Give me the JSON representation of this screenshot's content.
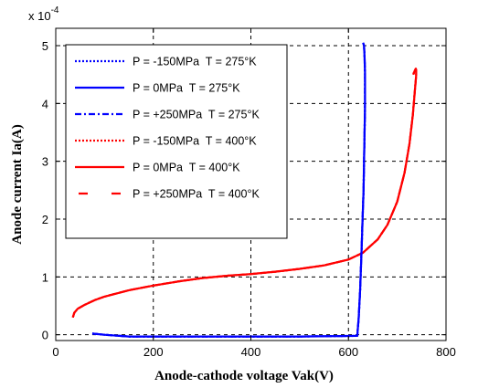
{
  "chart_data": {
    "type": "line",
    "xlabel": "Anode-cathode voltage Vak(V)",
    "ylabel": "Anode current Ia(A)",
    "y_multiplier_label": {
      "base": "x 10",
      "exponent": "-4"
    },
    "xlim": [
      0,
      800
    ],
    "ylim": [
      -0.1,
      5.3
    ],
    "x_ticks": [
      0,
      200,
      400,
      600,
      800
    ],
    "y_ticks": [
      0,
      1,
      2,
      3,
      4,
      5
    ],
    "grid": true,
    "grid_style": "dashed",
    "legend_position": "top-left",
    "colors": {
      "blue": "#0000ff",
      "red": "#ff0000",
      "grid": "#000000"
    },
    "series": [
      {
        "name": "P = -150MPa  T = 275°K",
        "color": "#0000ff",
        "dash": "dotted",
        "x": [
          75,
          100,
          150,
          300,
          500,
          618,
          621,
          624,
          627,
          629,
          631,
          632,
          633,
          634,
          634,
          633,
          632,
          630
        ],
        "y": [
          0.02,
          0.0,
          -0.03,
          -0.03,
          -0.03,
          -0.02,
          0.3,
          0.8,
          1.5,
          2.0,
          2.5,
          3.0,
          3.5,
          4.0,
          4.5,
          4.8,
          5.0,
          5.05
        ]
      },
      {
        "name": "P = 0MPa  T = 275°K",
        "color": "#0000ff",
        "dash": "solid",
        "x": [
          75,
          100,
          150,
          300,
          500,
          618,
          621,
          624,
          627,
          629,
          631,
          632,
          633,
          634,
          634,
          633,
          632,
          630
        ],
        "y": [
          0.02,
          0.0,
          -0.03,
          -0.03,
          -0.03,
          -0.02,
          0.3,
          0.8,
          1.5,
          2.0,
          2.5,
          3.0,
          3.5,
          4.0,
          4.5,
          4.8,
          5.0,
          5.05
        ]
      },
      {
        "name": "P = +250MPa  T = 275°K",
        "color": "#0000ff",
        "dash": "dashdot",
        "x": [
          75,
          100,
          150,
          300,
          500,
          618,
          621,
          624,
          627,
          629,
          631,
          632,
          633,
          634,
          634,
          633,
          632,
          630
        ],
        "y": [
          0.02,
          0.0,
          -0.03,
          -0.03,
          -0.03,
          -0.02,
          0.3,
          0.8,
          1.5,
          2.0,
          2.5,
          3.0,
          3.5,
          4.0,
          4.5,
          4.8,
          5.0,
          5.05
        ]
      },
      {
        "name": "P = -150MPa  T = 400°K",
        "color": "#ff0000",
        "dash": "dotted",
        "x": [
          35,
          38,
          45,
          60,
          80,
          100,
          150,
          200,
          250,
          300,
          350,
          400,
          450,
          500,
          550,
          600,
          630,
          660,
          680,
          700,
          715,
          725,
          732,
          736,
          738,
          739,
          739,
          738,
          735,
          733
        ],
        "y": [
          0.3,
          0.38,
          0.45,
          0.52,
          0.6,
          0.66,
          0.77,
          0.85,
          0.92,
          0.98,
          1.02,
          1.05,
          1.09,
          1.14,
          1.2,
          1.3,
          1.42,
          1.65,
          1.9,
          2.3,
          2.8,
          3.3,
          3.8,
          4.2,
          4.4,
          4.5,
          4.58,
          4.6,
          4.55,
          4.5
        ]
      },
      {
        "name": "P = 0MPa  T = 400°K",
        "color": "#ff0000",
        "dash": "solid",
        "x": [
          35,
          38,
          45,
          60,
          80,
          100,
          150,
          200,
          250,
          300,
          350,
          400,
          450,
          500,
          550,
          600,
          630,
          660,
          680,
          700,
          715,
          725,
          732,
          736,
          738,
          739,
          739,
          738,
          735,
          733
        ],
        "y": [
          0.3,
          0.38,
          0.45,
          0.52,
          0.6,
          0.66,
          0.77,
          0.85,
          0.92,
          0.98,
          1.02,
          1.05,
          1.09,
          1.14,
          1.2,
          1.3,
          1.42,
          1.65,
          1.9,
          2.3,
          2.8,
          3.3,
          3.8,
          4.2,
          4.4,
          4.5,
          4.58,
          4.6,
          4.55,
          4.5
        ]
      },
      {
        "name": "P = +250MPa  T = 400°K",
        "color": "#ff0000",
        "dash": "dashed",
        "x": [
          35,
          38,
          45,
          60,
          80,
          100,
          150,
          200,
          250,
          300,
          350,
          400,
          450,
          500,
          550,
          600,
          630,
          660,
          680,
          700,
          715,
          725,
          732,
          736,
          738,
          739,
          739,
          738,
          735,
          733
        ],
        "y": [
          0.3,
          0.38,
          0.45,
          0.52,
          0.6,
          0.66,
          0.77,
          0.85,
          0.92,
          0.98,
          1.02,
          1.05,
          1.09,
          1.14,
          1.2,
          1.3,
          1.42,
          1.65,
          1.9,
          2.3,
          2.8,
          3.3,
          3.8,
          4.2,
          4.4,
          4.5,
          4.58,
          4.6,
          4.55,
          4.5
        ]
      }
    ]
  }
}
